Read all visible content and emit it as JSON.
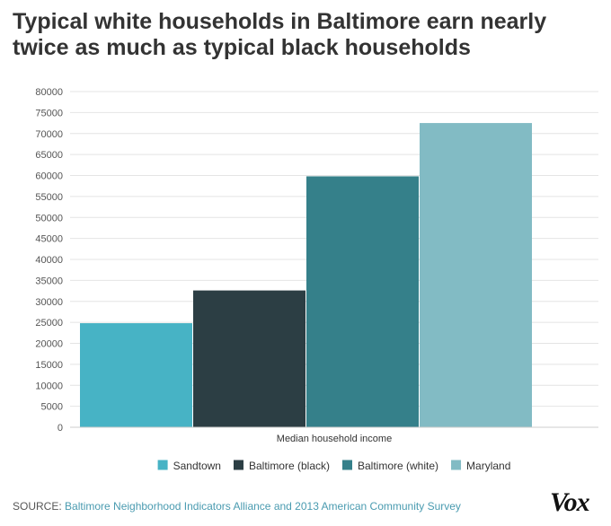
{
  "title": "Typical white households in Baltimore earn nearly twice as much as typical black households",
  "source_prefix": "SOURCE: ",
  "source_text": "Baltimore Neighborhood Indicators Alliance and 2013 American Community Survey",
  "logo_text": "Vox",
  "chart_data": {
    "type": "bar",
    "categories": [
      "Median household income"
    ],
    "series": [
      {
        "name": "Sandtown",
        "values": [
          24800
        ],
        "color": "#47b3c5"
      },
      {
        "name": "Baltimore (black)",
        "values": [
          32600
        ],
        "color": "#2c3e44"
      },
      {
        "name": "Baltimore (white)",
        "values": [
          59800
        ],
        "color": "#35808a"
      },
      {
        "name": "Maryland",
        "values": [
          72500
        ],
        "color": "#82bbc4"
      }
    ],
    "xlabel": "Median household income",
    "ylabel": "",
    "ylim": [
      0,
      80000
    ],
    "yticks": [
      "0",
      "5000",
      "10000",
      "15000",
      "20000",
      "25000",
      "30000",
      "35000",
      "40000",
      "45000",
      "50000",
      "55000",
      "60000",
      "65000",
      "70000",
      "75000",
      "80000"
    ],
    "grid": true,
    "legend_position": "bottom"
  }
}
